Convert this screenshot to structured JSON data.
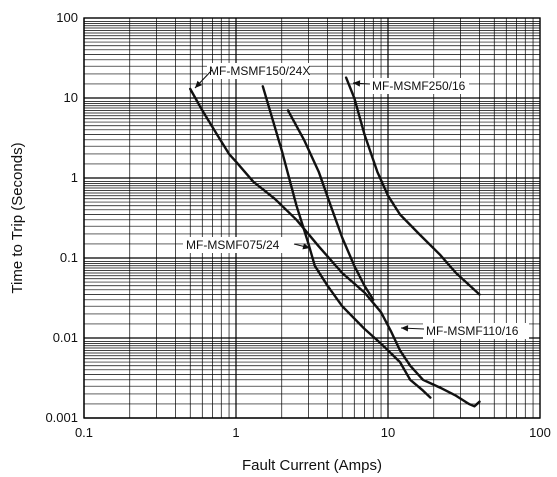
{
  "chart_data": {
    "type": "line",
    "title": "",
    "xlabel": "Fault Current  (Amps)",
    "ylabel": "Time to Trip (Seconds)",
    "xscale": "log",
    "yscale": "log",
    "xlim": [
      0.1,
      100
    ],
    "ylim": [
      0.001,
      100
    ],
    "grid": true,
    "x_ticks": [
      "0.1",
      "1",
      "10",
      "100"
    ],
    "y_ticks": [
      "0.001",
      "0.01",
      "0.1",
      "1",
      "10",
      "100"
    ],
    "series": [
      {
        "name": "MF-MSMF150/24X",
        "points": [
          [
            0.5,
            13
          ],
          [
            0.6,
            7
          ],
          [
            0.75,
            3.5
          ],
          [
            0.9,
            2.0
          ],
          [
            1.0,
            1.6
          ],
          [
            1.3,
            0.9
          ],
          [
            1.8,
            0.55
          ],
          [
            2.5,
            0.3
          ],
          [
            3.5,
            0.14
          ],
          [
            5.0,
            0.065
          ],
          [
            7.0,
            0.037
          ],
          [
            9.0,
            0.021
          ],
          [
            10.5,
            0.012
          ],
          [
            12,
            0.007
          ],
          [
            14,
            0.0045
          ],
          [
            17,
            0.003
          ],
          [
            22,
            0.0024
          ],
          [
            28,
            0.0019
          ],
          [
            34,
            0.0015
          ],
          [
            37,
            0.0014
          ],
          [
            40,
            0.0016
          ]
        ]
      },
      {
        "name": "MF-MSMF075/24",
        "points": [
          [
            1.5,
            14
          ],
          [
            2.0,
            2.2
          ],
          [
            2.5,
            0.45
          ],
          [
            3.0,
            0.15
          ],
          [
            3.3,
            0.08
          ],
          [
            4.0,
            0.045
          ],
          [
            5.0,
            0.025
          ],
          [
            7.0,
            0.013
          ],
          [
            9.0,
            0.0085
          ],
          [
            12,
            0.005
          ],
          [
            14,
            0.003
          ],
          [
            17,
            0.0022
          ],
          [
            19,
            0.0018
          ]
        ]
      },
      {
        "name": "MF-MSMF110/16",
        "points": [
          [
            2.2,
            7
          ],
          [
            2.8,
            3.0
          ],
          [
            3.5,
            1.2
          ],
          [
            4.2,
            0.45
          ],
          [
            5.0,
            0.18
          ],
          [
            6.0,
            0.08
          ],
          [
            7.0,
            0.045
          ],
          [
            8.0,
            0.03
          ]
        ]
      },
      {
        "name": "MF-MSMF250/16",
        "points": [
          [
            5.3,
            18
          ],
          [
            6.0,
            10
          ],
          [
            7.0,
            3.5
          ],
          [
            8.5,
            1.2
          ],
          [
            10,
            0.6
          ],
          [
            12,
            0.35
          ],
          [
            16,
            0.2
          ],
          [
            22,
            0.11
          ],
          [
            28,
            0.065
          ],
          [
            40,
            0.035
          ]
        ]
      }
    ],
    "annotations": [
      {
        "text": "MF-MSMF150/24X"
      },
      {
        "text": "MF-MSMF250/16"
      },
      {
        "text": "MF-MSMF075/24"
      },
      {
        "text": "MF-MSMF110/16"
      }
    ]
  }
}
